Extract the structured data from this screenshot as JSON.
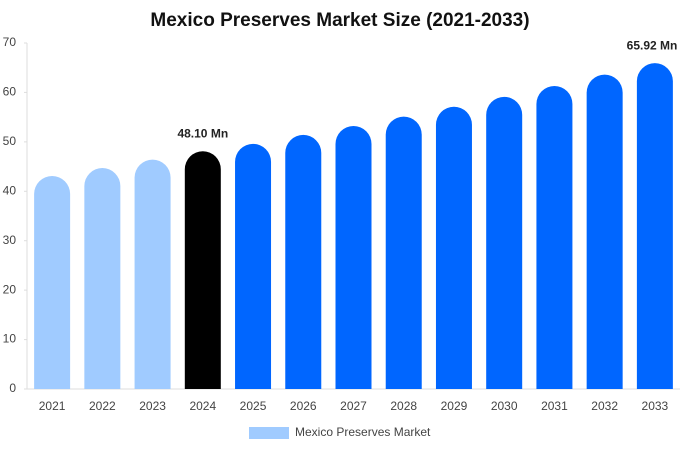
{
  "chart_data": {
    "type": "bar",
    "title": "Mexico Preserves Market Size (2021-2033)",
    "categories": [
      "2021",
      "2022",
      "2023",
      "2024",
      "2025",
      "2026",
      "2027",
      "2028",
      "2029",
      "2030",
      "2031",
      "2032",
      "2033"
    ],
    "series": [
      {
        "name": "Mexico Preserves Market",
        "color": "#a0cbff",
        "values": [
          43.1,
          44.7,
          46.4,
          48.1,
          49.6,
          51.4,
          53.2,
          55.1,
          57.1,
          59.1,
          61.3,
          63.6,
          65.92
        ],
        "value_labels": [
          null,
          null,
          null,
          "48.10 Mn",
          null,
          null,
          null,
          null,
          null,
          null,
          null,
          null,
          "65.92 Mn"
        ],
        "colors": [
          "#a0cbff",
          "#a0cbff",
          "#a0cbff",
          "#000000",
          "#0066ff",
          "#0066ff",
          "#0066ff",
          "#0066ff",
          "#0066ff",
          "#0066ff",
          "#0066ff",
          "#0066ff",
          "#0066ff"
        ]
      }
    ],
    "ylim": [
      0,
      70
    ],
    "yticks": [
      0,
      10,
      20,
      30,
      40,
      50,
      60,
      70
    ],
    "grid": false
  }
}
